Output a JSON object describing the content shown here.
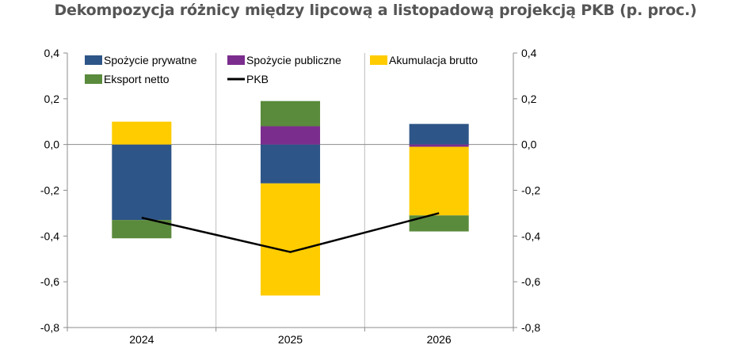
{
  "chart_data": {
    "type": "bar",
    "title": "Dekompozycja różnicy między lipcową a listopadową projekcją PKB (p. proc.)",
    "categories": [
      "2024",
      "2025",
      "2026"
    ],
    "ylim": [
      -0.8,
      0.4
    ],
    "yticks": [
      "0,4",
      "0,2",
      "0,0",
      "-0,2",
      "-0,4",
      "-0,6",
      "-0,8"
    ],
    "ytick_values": [
      0.4,
      0.2,
      0.0,
      -0.2,
      -0.4,
      -0.6,
      -0.8
    ],
    "secondary_axis": true,
    "grid": "vertical",
    "legend_position": "top",
    "stacked": true,
    "series": [
      {
        "name": "Spożycie prywatne",
        "type": "bar",
        "color": "#2E5587",
        "values": [
          -0.33,
          -0.17,
          0.09
        ]
      },
      {
        "name": "Spożycie publiczne",
        "type": "bar",
        "color": "#7B2D8E",
        "values": [
          0.0,
          0.08,
          -0.01
        ]
      },
      {
        "name": "Akumulacja brutto",
        "type": "bar",
        "color": "#FFCC00",
        "values": [
          0.1,
          -0.49,
          -0.3
        ]
      },
      {
        "name": "Eksport netto",
        "type": "bar",
        "color": "#5A8A3C",
        "values": [
          -0.08,
          0.11,
          -0.07
        ]
      },
      {
        "name": "PKB",
        "type": "line",
        "color": "#000000",
        "values": [
          -0.32,
          -0.47,
          -0.3
        ]
      }
    ]
  }
}
